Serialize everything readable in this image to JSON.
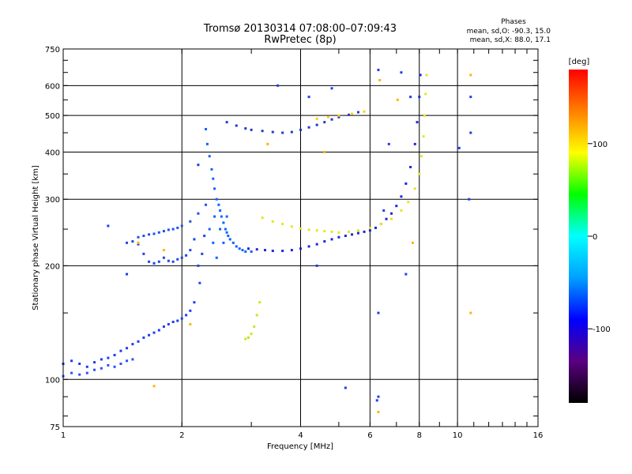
{
  "chart_data": {
    "type": "scatter",
    "title": "Tromsø 20130314 07:08:00–07:09:43",
    "subtitle": "RwPretec (8p)",
    "xlabel": "Frequency [MHz]",
    "ylabel": "Stationary phase Virtual Height [km]",
    "x_scale": "log2",
    "y_scale": "log",
    "xlim": [
      1,
      16
    ],
    "ylim": [
      75,
      750
    ],
    "x_ticks": [
      "1",
      "2",
      "4",
      "6",
      "8",
      "10",
      "16"
    ],
    "y_ticks": [
      "75",
      "100",
      "200",
      "300",
      "400",
      "500",
      "600",
      "750"
    ],
    "grid": true,
    "stats": {
      "title": "Phases",
      "line1": "mean, sd,O: -90.3, 15.0",
      "line2": "mean, sd,X:  88.0, 17.1"
    },
    "colorbar": {
      "label": "[deg]",
      "range": [
        -180,
        180
      ],
      "ticks": [
        "100",
        "0",
        "-100"
      ],
      "colors": [
        "#000000",
        "#5a0080",
        "#0000ff",
        "#00a0ff",
        "#00ffff",
        "#00ff00",
        "#ffff00",
        "#ff8000",
        "#ff0000"
      ]
    },
    "series": [
      {
        "trace": "o-low-e",
        "color": "#1e3cf0",
        "points": [
          [
            1.0,
            110
          ],
          [
            1.05,
            112
          ],
          [
            1.1,
            110
          ],
          [
            1.15,
            108
          ],
          [
            1.2,
            111
          ],
          [
            1.25,
            113
          ],
          [
            1.3,
            114
          ],
          [
            1.35,
            116
          ],
          [
            1.4,
            119
          ],
          [
            1.45,
            121
          ],
          [
            1.5,
            124
          ],
          [
            1.55,
            126
          ],
          [
            1.6,
            129
          ],
          [
            1.65,
            131
          ],
          [
            1.7,
            133
          ],
          [
            1.75,
            135
          ],
          [
            1.8,
            138
          ],
          [
            1.85,
            140
          ],
          [
            1.9,
            142
          ],
          [
            1.95,
            143
          ],
          [
            2.0,
            145
          ],
          [
            2.05,
            148
          ],
          [
            2.1,
            152
          ],
          [
            2.15,
            160
          ]
        ]
      },
      {
        "trace": "o-low-e2",
        "color": "#2a50ff",
        "points": [
          [
            1.0,
            102
          ],
          [
            1.05,
            104
          ],
          [
            1.1,
            103
          ],
          [
            1.15,
            104
          ],
          [
            1.2,
            106
          ],
          [
            1.25,
            107
          ],
          [
            1.3,
            109
          ],
          [
            1.35,
            108
          ],
          [
            1.4,
            110
          ],
          [
            1.45,
            112
          ],
          [
            1.5,
            113
          ]
        ]
      },
      {
        "trace": "o-f1-cusp",
        "color": "#1e46e6",
        "points": [
          [
            1.45,
            230
          ],
          [
            1.5,
            232
          ],
          [
            1.55,
            228
          ],
          [
            1.6,
            215
          ],
          [
            1.65,
            205
          ],
          [
            1.7,
            203
          ],
          [
            1.75,
            205
          ],
          [
            1.8,
            210
          ],
          [
            1.85,
            206
          ],
          [
            1.9,
            205
          ],
          [
            1.95,
            208
          ],
          [
            2.0,
            210
          ],
          [
            2.05,
            213
          ],
          [
            2.1,
            220
          ],
          [
            2.15,
            235
          ],
          [
            2.2,
            200
          ],
          [
            2.22,
            180
          ],
          [
            2.25,
            215
          ],
          [
            2.28,
            240
          ]
        ]
      },
      {
        "trace": "o-f1-upper",
        "color": "#1e50f0",
        "points": [
          [
            1.55,
            238
          ],
          [
            1.6,
            240
          ],
          [
            1.65,
            242
          ],
          [
            1.7,
            243
          ],
          [
            1.75,
            245
          ],
          [
            1.8,
            247
          ],
          [
            1.85,
            249
          ],
          [
            1.9,
            250
          ],
          [
            1.95,
            252
          ],
          [
            2.0,
            255
          ],
          [
            2.1,
            262
          ],
          [
            2.2,
            275
          ],
          [
            2.3,
            290
          ]
        ]
      },
      {
        "trace": "o-f2-cusp",
        "color": "#0a64ff",
        "points": [
          [
            2.3,
            460
          ],
          [
            2.32,
            420
          ],
          [
            2.35,
            390
          ],
          [
            2.38,
            360
          ],
          [
            2.4,
            340
          ],
          [
            2.42,
            320
          ],
          [
            2.45,
            300
          ],
          [
            2.48,
            290
          ],
          [
            2.5,
            280
          ],
          [
            2.52,
            270
          ],
          [
            2.55,
            260
          ],
          [
            2.58,
            250
          ],
          [
            2.6,
            245
          ],
          [
            2.62,
            240
          ],
          [
            2.65,
            235
          ],
          [
            2.7,
            230
          ],
          [
            2.75,
            225
          ],
          [
            2.8,
            222
          ],
          [
            2.85,
            220
          ],
          [
            2.9,
            218
          ],
          [
            3.0,
            218
          ],
          [
            2.4,
            230
          ],
          [
            2.45,
            210
          ],
          [
            2.5,
            250
          ],
          [
            2.55,
            230
          ],
          [
            2.6,
            270
          ],
          [
            2.35,
            250
          ],
          [
            2.42,
            270
          ]
        ]
      },
      {
        "trace": "o-f2-main",
        "color": "#1a28d8",
        "points": [
          [
            2.95,
            222
          ],
          [
            3.1,
            221
          ],
          [
            3.25,
            220
          ],
          [
            3.4,
            219
          ],
          [
            3.6,
            219
          ],
          [
            3.8,
            220
          ],
          [
            4.0,
            222
          ],
          [
            4.2,
            225
          ],
          [
            4.4,
            228
          ],
          [
            4.6,
            232
          ],
          [
            4.8,
            235
          ],
          [
            5.0,
            238
          ],
          [
            5.2,
            240
          ],
          [
            5.4,
            242
          ],
          [
            5.6,
            244
          ],
          [
            5.8,
            246
          ],
          [
            6.0,
            248
          ],
          [
            6.2,
            252
          ],
          [
            6.4,
            258
          ],
          [
            6.6,
            266
          ],
          [
            6.8,
            275
          ],
          [
            7.0,
            288
          ],
          [
            7.2,
            305
          ],
          [
            7.4,
            330
          ],
          [
            7.6,
            365
          ],
          [
            7.8,
            420
          ],
          [
            7.9,
            480
          ],
          [
            8.0,
            560
          ],
          [
            8.05,
            640
          ]
        ]
      },
      {
        "trace": "x-f2-main",
        "color": "#e6e61e",
        "points": [
          [
            3.2,
            268
          ],
          [
            3.4,
            262
          ],
          [
            3.6,
            258
          ],
          [
            3.8,
            254
          ],
          [
            4.0,
            251
          ],
          [
            4.2,
            249
          ],
          [
            4.4,
            248
          ],
          [
            4.6,
            247
          ],
          [
            4.8,
            246
          ],
          [
            5.0,
            245
          ],
          [
            5.3,
            246
          ],
          [
            5.6,
            248
          ],
          [
            6.0,
            252
          ],
          [
            6.4,
            258
          ],
          [
            6.8,
            266
          ],
          [
            7.2,
            280
          ],
          [
            7.5,
            295
          ],
          [
            7.8,
            320
          ],
          [
            8.0,
            350
          ],
          [
            8.1,
            390
          ],
          [
            8.2,
            440
          ],
          [
            8.25,
            500
          ],
          [
            8.3,
            570
          ],
          [
            8.35,
            640
          ]
        ]
      },
      {
        "trace": "f2-upper-layer",
        "color": "#1e3cc8",
        "points": [
          [
            2.6,
            480
          ],
          [
            2.75,
            470
          ],
          [
            2.9,
            462
          ],
          [
            3.0,
            458
          ],
          [
            3.2,
            455
          ],
          [
            3.4,
            452
          ],
          [
            3.6,
            450
          ],
          [
            3.8,
            452
          ],
          [
            4.0,
            458
          ],
          [
            4.2,
            465
          ],
          [
            4.4,
            472
          ],
          [
            4.6,
            480
          ],
          [
            4.8,
            488
          ],
          [
            5.0,
            495
          ],
          [
            5.3,
            502
          ],
          [
            5.6,
            510
          ]
        ]
      },
      {
        "trace": "x-upper-layer",
        "color": "#ffd200",
        "points": [
          [
            4.4,
            490
          ],
          [
            4.7,
            495
          ],
          [
            5.0,
            500
          ],
          [
            5.4,
            505
          ],
          [
            5.8,
            512
          ]
        ]
      },
      {
        "trace": "x-short-arc",
        "color": "#c8e61e",
        "points": [
          [
            2.9,
            128
          ],
          [
            2.95,
            129
          ],
          [
            3.0,
            132
          ],
          [
            3.05,
            138
          ],
          [
            3.1,
            148
          ],
          [
            3.15,
            160
          ]
        ]
      },
      {
        "trace": "scattered",
        "color": "#1e3cf0",
        "points": [
          [
            1.3,
            255
          ],
          [
            1.45,
            190
          ],
          [
            2.2,
            370
          ],
          [
            3.5,
            600
          ],
          [
            4.2,
            560
          ],
          [
            4.8,
            590
          ],
          [
            6.3,
            660
          ],
          [
            6.5,
            280
          ],
          [
            6.7,
            420
          ],
          [
            7.2,
            650
          ],
          [
            7.6,
            560
          ],
          [
            10.1,
            410
          ],
          [
            10.8,
            450
          ],
          [
            10.8,
            560
          ],
          [
            10.7,
            300
          ],
          [
            6.3,
            150
          ],
          [
            6.3,
            90
          ],
          [
            5.2,
            95
          ],
          [
            4.4,
            200
          ],
          [
            7.4,
            190
          ],
          [
            6.25,
            88
          ]
        ]
      },
      {
        "trace": "scattered-x",
        "color": "#ffb400",
        "points": [
          [
            1.55,
            230
          ],
          [
            1.7,
            96
          ],
          [
            1.8,
            220
          ],
          [
            2.1,
            140
          ],
          [
            6.35,
            620
          ],
          [
            6.3,
            82
          ],
          [
            7.05,
            550
          ],
          [
            10.8,
            640
          ],
          [
            10.8,
            150
          ],
          [
            4.6,
            400
          ],
          [
            3.3,
            420
          ],
          [
            7.7,
            230
          ]
        ]
      }
    ]
  }
}
